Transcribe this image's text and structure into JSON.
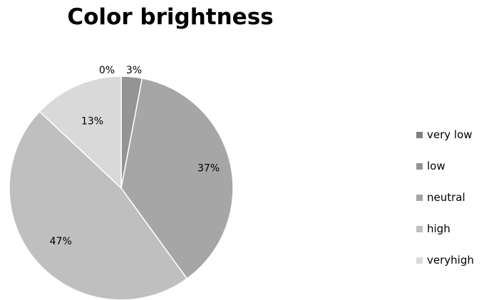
{
  "chart_data": {
    "type": "pie",
    "title": "Color brightness",
    "categories": [
      "very low",
      "low",
      "neutral",
      "high",
      "veryhigh"
    ],
    "values": [
      0,
      3,
      37,
      47,
      13
    ],
    "labels": [
      "0%",
      "3%",
      "37%",
      "47%",
      "13%"
    ],
    "colors": [
      "#7f7f7f",
      "#949494",
      "#a6a6a6",
      "#bfbfbf",
      "#d9d9d9"
    ],
    "legend_position": "right"
  }
}
